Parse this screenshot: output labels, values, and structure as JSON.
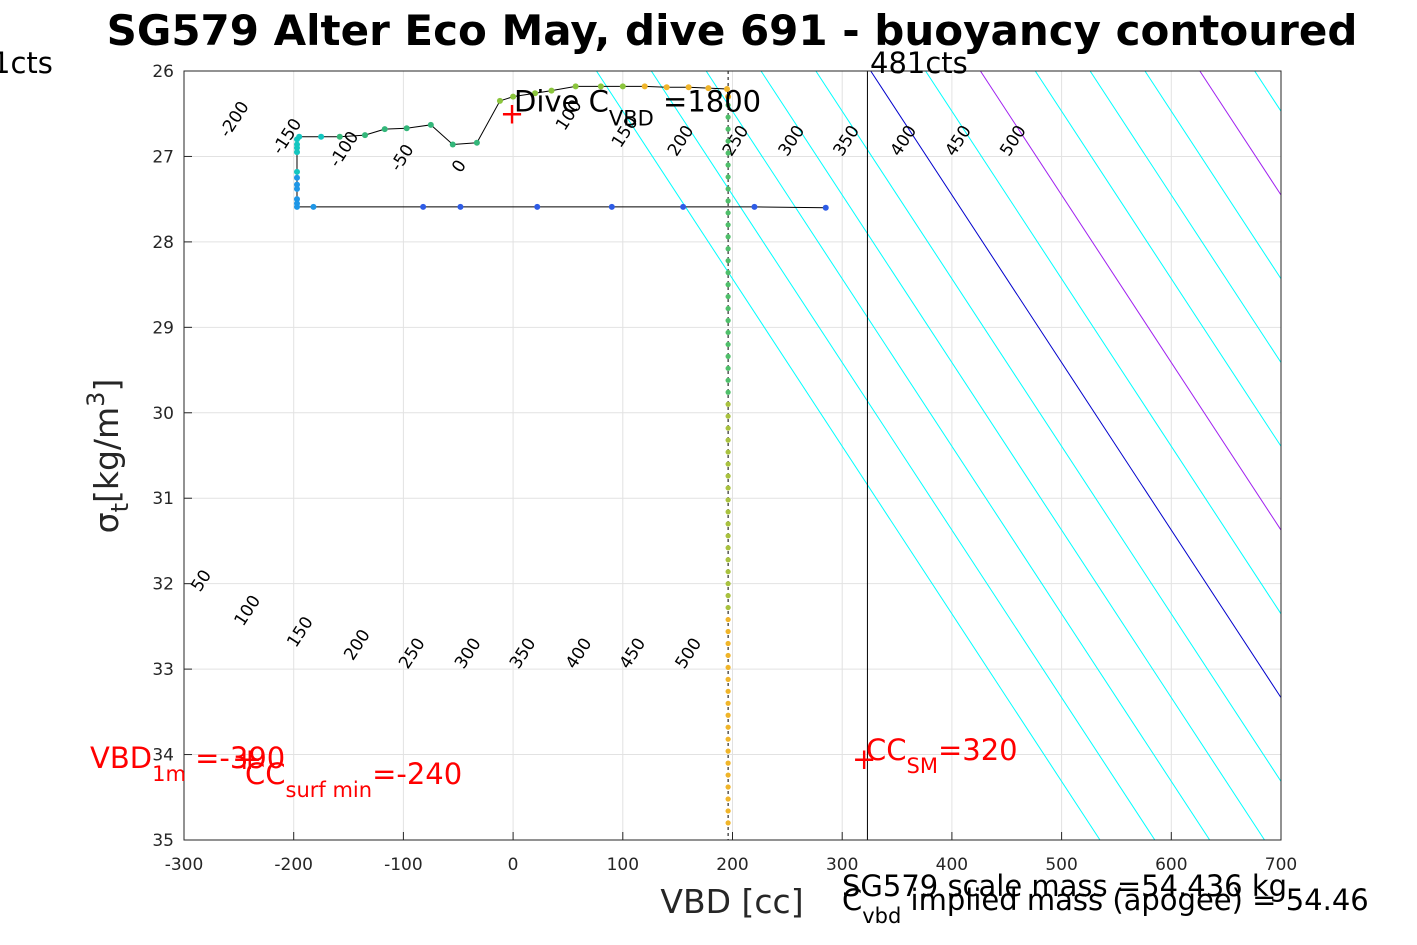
{
  "chart_data": {
    "type": "scatter",
    "title": "SG579 Alter Eco May, dive 691 - buoyancy contoured",
    "xlabel": "VBD [cc]",
    "ylabel": {
      "symbol": "σ",
      "sub": "t",
      "text": "[kg/m",
      "sup": "3",
      "close": "]"
    },
    "xlim": [
      -300,
      700
    ],
    "ylim": [
      26,
      35
    ],
    "y_reversed": true,
    "grid": true,
    "x_ticks": [
      -300,
      -200,
      -100,
      0,
      100,
      200,
      300,
      400,
      500,
      600,
      700
    ],
    "y_ticks": [
      26,
      27,
      28,
      29,
      30,
      31,
      32,
      33,
      34,
      35
    ],
    "contours": {
      "line_slope_cc_per_kgm3": 51,
      "offsets": [
        -1250,
        -1200,
        -1150,
        -1100,
        -1050,
        -1000,
        -950,
        -900,
        -850,
        -800,
        -750,
        -700,
        -650,
        -600,
        -550
      ],
      "zero_offset": -1000,
      "zero_color": "#0000cc",
      "highlight_offsets": [
        -900,
        -700
      ],
      "highlight_color": "#a020f0",
      "default_color": "#00ffff",
      "labels_top": [
        {
          "text": "-200",
          "x": -250,
          "y": 26.6
        },
        {
          "text": "-150",
          "x": -202,
          "y": 26.8
        },
        {
          "text": "-100",
          "x": -150,
          "y": 26.95
        },
        {
          "text": "-50",
          "x": -97,
          "y": 27.05
        },
        {
          "text": "0",
          "x": -45,
          "y": 27.15
        },
        {
          "text": "100",
          "x": 55,
          "y": 26.55
        },
        {
          "text": "150",
          "x": 106,
          "y": 26.75
        },
        {
          "text": "200",
          "x": 157,
          "y": 26.85
        },
        {
          "text": "250",
          "x": 207,
          "y": 26.85
        },
        {
          "text": "300",
          "x": 258,
          "y": 26.85
        },
        {
          "text": "350",
          "x": 308,
          "y": 26.85
        },
        {
          "text": "400",
          "x": 360,
          "y": 26.85
        },
        {
          "text": "450",
          "x": 410,
          "y": 26.85
        },
        {
          "text": "500",
          "x": 460,
          "y": 26.85
        }
      ],
      "labels_bottom": [
        {
          "text": "50",
          "x": -280,
          "y": 32.0
        },
        {
          "text": "100",
          "x": -238,
          "y": 32.35
        },
        {
          "text": "150",
          "x": -190,
          "y": 32.6
        },
        {
          "text": "200",
          "x": -138,
          "y": 32.75
        },
        {
          "text": "250",
          "x": -88,
          "y": 32.85
        },
        {
          "text": "300",
          "x": -37,
          "y": 32.85
        },
        {
          "text": "350",
          "x": 13,
          "y": 32.85
        },
        {
          "text": "400",
          "x": 64,
          "y": 32.85
        },
        {
          "text": "450",
          "x": 113,
          "y": 32.85
        },
        {
          "text": "500",
          "x": 164,
          "y": 32.85
        }
      ]
    },
    "series": [
      {
        "values": [
          {
            "x": 285,
            "y": 27.6
          },
          {
            "x": 220,
            "y": 27.59
          },
          {
            "x": 155,
            "y": 27.59
          },
          {
            "x": 90,
            "y": 27.59
          },
          {
            "x": 22,
            "y": 27.59
          },
          {
            "x": -48,
            "y": 27.59
          },
          {
            "x": -82,
            "y": 27.59
          },
          {
            "x": -182,
            "y": 27.59
          },
          {
            "x": -197,
            "y": 27.59
          },
          {
            "x": -197,
            "y": 27.55
          },
          {
            "x": -197,
            "y": 27.5
          },
          {
            "x": -197,
            "y": 27.38
          },
          {
            "x": -197,
            "y": 27.33
          },
          {
            "x": -197,
            "y": 27.25
          },
          {
            "x": -197,
            "y": 27.18
          },
          {
            "x": -197,
            "y": 26.95
          },
          {
            "x": -197,
            "y": 26.9
          },
          {
            "x": -197,
            "y": 26.86
          },
          {
            "x": -197,
            "y": 26.8
          },
          {
            "x": -195,
            "y": 26.77
          },
          {
            "x": -175,
            "y": 26.77
          },
          {
            "x": -158,
            "y": 26.77
          },
          {
            "x": -135,
            "y": 26.75
          },
          {
            "x": -117,
            "y": 26.68
          },
          {
            "x": -97,
            "y": 26.67
          },
          {
            "x": -75,
            "y": 26.63
          },
          {
            "x": -55,
            "y": 26.86
          },
          {
            "x": -33,
            "y": 26.84
          },
          {
            "x": -12,
            "y": 26.35
          },
          {
            "x": 0,
            "y": 26.3
          },
          {
            "x": 20,
            "y": 26.26
          },
          {
            "x": 35,
            "y": 26.23
          },
          {
            "x": 57,
            "y": 26.18
          },
          {
            "x": 80,
            "y": 26.18
          },
          {
            "x": 100,
            "y": 26.18
          },
          {
            "x": 120,
            "y": 26.18
          },
          {
            "x": 140,
            "y": 26.19
          },
          {
            "x": 160,
            "y": 26.19
          },
          {
            "x": 178,
            "y": 26.2
          },
          {
            "x": 195,
            "y": 26.21
          },
          {
            "x": 196,
            "y": 26.3
          }
        ]
      }
    ],
    "vertical_lines": [
      {
        "x": 196,
        "color": "#000000",
        "dashed": true
      },
      {
        "x": 323,
        "color": "#000000",
        "dashed": false
      }
    ],
    "corner_labels": [
      "1cts",
      "481cts"
    ],
    "dive_cvbd": {
      "x": -1,
      "y": 26.5,
      "prefix": "Dive C",
      "sub": "VBD",
      "suffix": " =1800"
    },
    "annotations": {
      "vbd_1m": {
        "main": "VBD",
        "sub": "1m",
        "value": " =-390",
        "x": -245,
        "y": 34.05
      },
      "cc_surf_min": {
        "main": "CC",
        "sub": "surf min",
        "value": "=-240",
        "x": -240,
        "y": 34.05
      },
      "cc_sm": {
        "main": "CC",
        "sub": "SM",
        "value": "=320",
        "x": 320,
        "y": 34.05
      }
    },
    "footer": {
      "scale_mass": "SG579 scale mass =54.436 kg",
      "implied_prefix": "C",
      "implied_sub": "vbd",
      "implied_text": " implied mass (apogee) = 54.46"
    },
    "colors": {
      "annotation": "#ff0000",
      "depth_gradient": [
        "#2e5ce6",
        "#1e96e6",
        "#13c6c0",
        "#33b77a",
        "#8bc53c",
        "#f0b52a"
      ]
    }
  }
}
